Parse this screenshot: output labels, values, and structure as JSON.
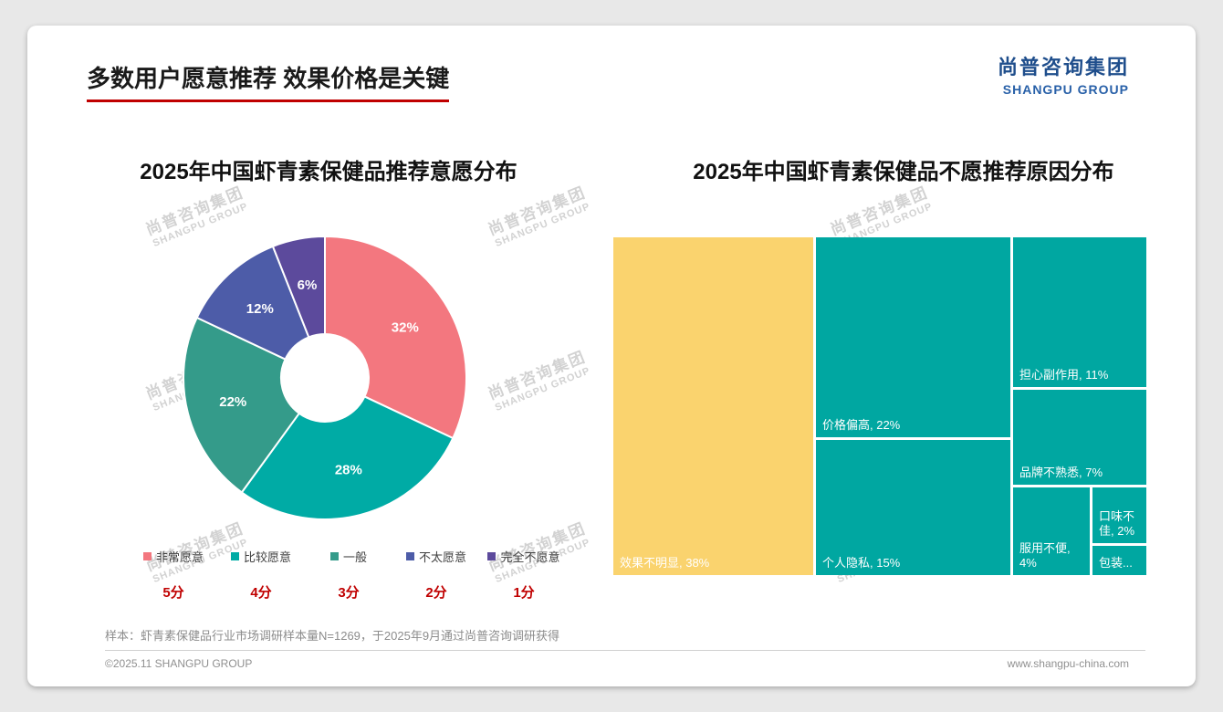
{
  "slide": {
    "title": "多数用户愿意推荐 效果价格是关键",
    "logo_cn": "尚普咨询集团",
    "logo_en": "SHANGPU GROUP",
    "watermark_cn": "尚普咨询集团",
    "watermark_en": "SHANGPU GROUP",
    "footnote": "样本：虾青素保健品行业市场调研样本量N=1269，于2025年9月通过尚普咨询调研获得",
    "footer_left": "©2025.11 SHANGPU GROUP",
    "footer_right": "www.shangpu-china.com"
  },
  "colors": {
    "accent_red": "#C00000",
    "logo_blue": "#1F4E8C",
    "treemap_teal": "#00A7A1",
    "treemap_yellow": "#FAD36E"
  },
  "chart_data": [
    {
      "type": "pie",
      "subtype": "donut",
      "title": "2025年中国虾青素保健品推荐意愿分布",
      "labels": [
        "非常愿意",
        "比较愿意",
        "一般",
        "不太愿意",
        "完全不愿意"
      ],
      "values": [
        32,
        28,
        22,
        12,
        6
      ],
      "value_labels": [
        "32%",
        "28%",
        "22%",
        "12%",
        "6%"
      ],
      "colors": [
        "#F3777F",
        "#00ABA5",
        "#349B8A",
        "#4D5CA8",
        "#5C4A9C"
      ],
      "scores": [
        "5分",
        "4分",
        "3分",
        "2分",
        "1分"
      ],
      "legend_position": "bottom",
      "start_angle_deg": -90,
      "direction": "clockwise"
    },
    {
      "type": "treemap",
      "title": "2025年中国虾青素保健品不愿推荐原因分布",
      "items": [
        {
          "label": "效果不明显",
          "value": 38,
          "display": "效果不明显, 38%",
          "color": "#FAD36E"
        },
        {
          "label": "价格偏高",
          "value": 22,
          "display": "价格偏高, 22%",
          "color": "#00A7A1"
        },
        {
          "label": "个人隐私",
          "value": 15,
          "display": "个人隐私, 15%",
          "color": "#00A7A1"
        },
        {
          "label": "担心副作用",
          "value": 11,
          "display": "担心副作用, 11%",
          "color": "#00A7A1"
        },
        {
          "label": "品牌不熟悉",
          "value": 7,
          "display": "品牌不熟悉, 7%",
          "color": "#00A7A1"
        },
        {
          "label": "服用不便",
          "value": 4,
          "display": "服用不便, 4%",
          "color": "#00A7A1"
        },
        {
          "label": "口味不佳",
          "value": 2,
          "display": "口味不佳, 2%",
          "color": "#00A7A1"
        },
        {
          "label": "包装",
          "value": null,
          "display": "包装...",
          "color": "#00A7A1"
        }
      ]
    }
  ]
}
